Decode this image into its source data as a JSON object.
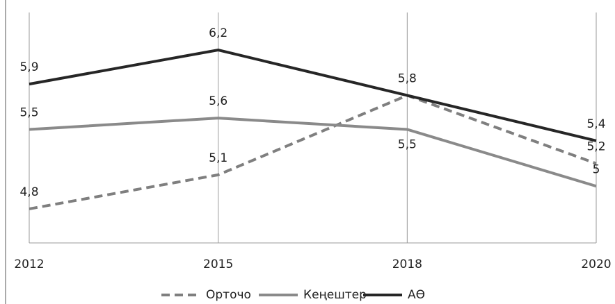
{
  "chart_data": {
    "type": "line",
    "categories": [
      "2012",
      "2015",
      "2018",
      "2020"
    ],
    "series": [
      {
        "name": "Орточо",
        "color": "#7f7f7f",
        "dashed": true,
        "values": [
          4.8,
          5.1,
          5.8,
          5.2
        ],
        "value_labels": [
          "4,8",
          "5,1",
          "5,8",
          "5,2"
        ]
      },
      {
        "name": "Кеңештер",
        "color": "#8a8a8a",
        "dashed": false,
        "values": [
          5.5,
          5.6,
          5.5,
          5.0
        ],
        "value_labels": [
          "5,5",
          "5,6",
          "5,5",
          "5"
        ]
      },
      {
        "name": "АӨ",
        "color": "#262626",
        "dashed": false,
        "values": [
          5.9,
          6.2,
          5.8,
          5.4
        ],
        "value_labels": [
          "5,9",
          "6,2",
          null,
          "5,4"
        ]
      }
    ],
    "ylim": [
      4.5,
      6.5
    ],
    "legend": "bottom"
  }
}
